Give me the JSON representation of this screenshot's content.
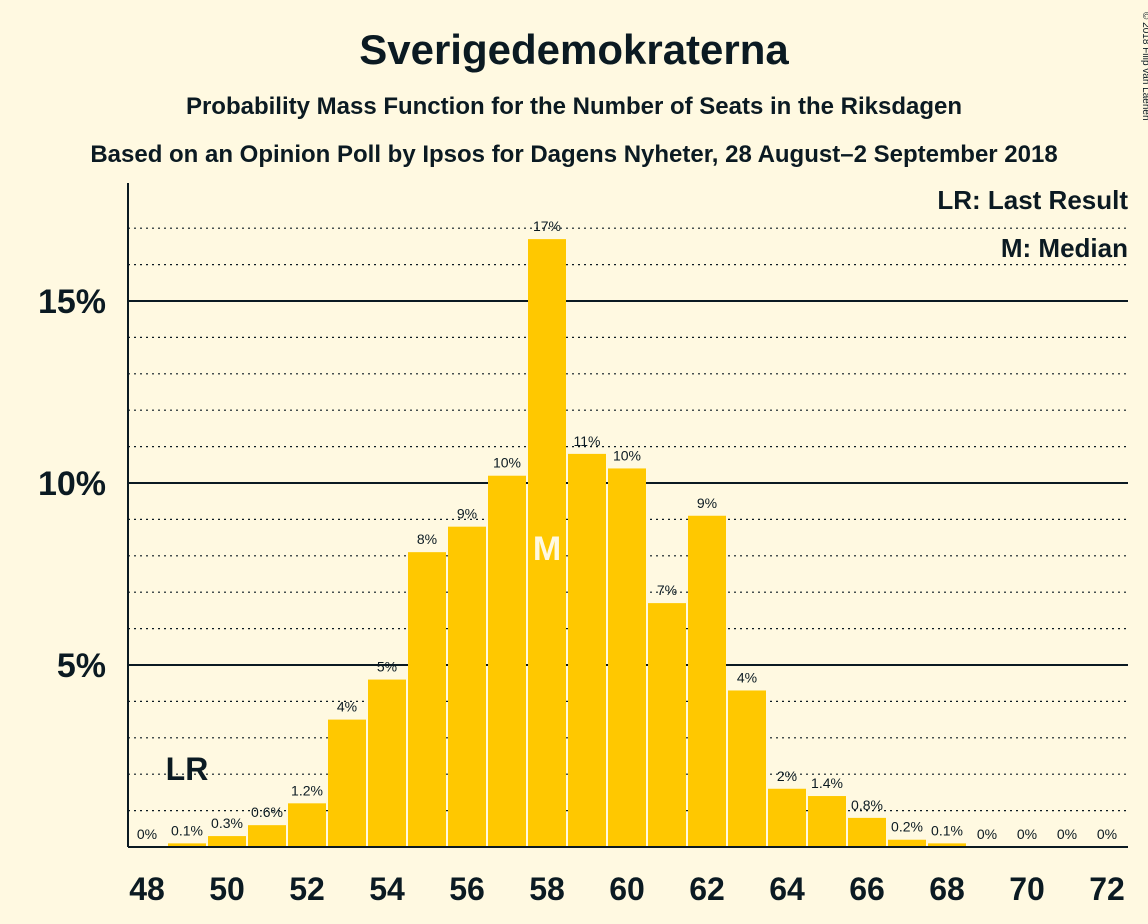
{
  "chart_data": {
    "type": "bar",
    "title": "Sverigedemokraterna",
    "subtitle": "Probability Mass Function for the Number of Seats in the Riksdagen",
    "subtitle2": "Based on an Opinion Poll by Ipsos for Dagens Nyheter, 28 August–2 September 2018",
    "copyright": "© 2018 Filip van Laenen",
    "legend": [
      "LR: Last Result",
      "M: Median"
    ],
    "legend_position": "top-right",
    "x": [
      48,
      49,
      50,
      51,
      52,
      53,
      54,
      55,
      56,
      57,
      58,
      59,
      60,
      61,
      62,
      63,
      64,
      65,
      66,
      67,
      68,
      69,
      70,
      71,
      72
    ],
    "values": [
      0,
      0.1,
      0.3,
      0.6,
      1.2,
      3.5,
      4.6,
      8.1,
      8.8,
      10.2,
      16.7,
      10.8,
      10.4,
      6.7,
      9.1,
      4.3,
      1.6,
      1.4,
      0.8,
      0.2,
      0.1,
      0,
      0,
      0,
      0
    ],
    "labels": [
      "0%",
      "0.1%",
      "0.3%",
      "0.6%",
      "1.2%",
      "4%",
      "5%",
      "8%",
      "9%",
      "10%",
      "17%",
      "11%",
      "10%",
      "7%",
      "9%",
      "4%",
      "2%",
      "1.4%",
      "0.8%",
      "0.2%",
      "0.1%",
      "0%",
      "0%",
      "0%",
      "0%"
    ],
    "x_ticks": [
      "48",
      "50",
      "52",
      "54",
      "56",
      "58",
      "60",
      "62",
      "64",
      "66",
      "68",
      "70",
      "72"
    ],
    "y_ticks": [
      "5%",
      "10%",
      "15%"
    ],
    "ylim": [
      0,
      18
    ],
    "last_result": {
      "seat": 49,
      "label": "LR"
    },
    "median": {
      "seat": 58,
      "label": "M"
    },
    "grid": true,
    "colors": {
      "bar": "#FFC800",
      "background": "#FFF9E1",
      "text": "#0B1A22",
      "median_text": "#FFF9E1"
    }
  }
}
